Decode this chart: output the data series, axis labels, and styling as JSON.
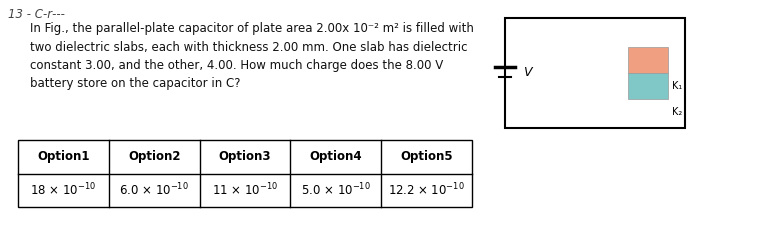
{
  "background_color": "#ffffff",
  "header_text": "13 - C‑r‑‑‑",
  "question_text": "In Fig., the parallel-plate capacitor of plate area 2.00x 10⁻² m² is filled with\ntwo dielectric slabs, each with thickness 2.00 mm. One slab has dielectric\nconstant 3.00, and the other, 4.00. How much charge does the 8.00 V\nbattery store on the capacitor in C?",
  "table_headers": [
    "Option1",
    "Option2",
    "Option3",
    "Option4",
    "Option5"
  ],
  "dielectric_colors": [
    "#f0a080",
    "#80c8c8"
  ],
  "k_labels": [
    "K₁",
    "K₂"
  ],
  "header_fontsize": 8.5,
  "question_fontsize": 8.5,
  "table_fontsize": 8.5
}
